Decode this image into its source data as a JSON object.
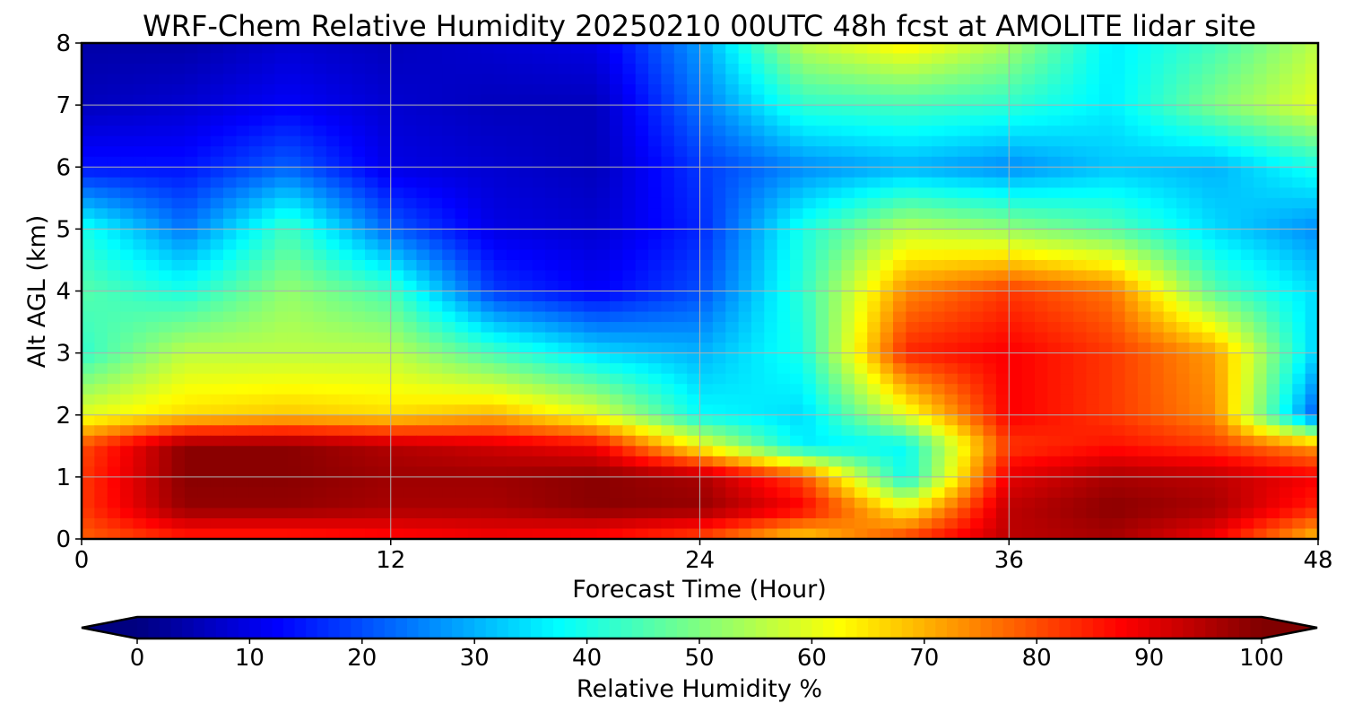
{
  "chart_data": {
    "type": "heatmap",
    "title": "WRF-Chem Relative Humidity 20250210 00UTC 48h fcst at AMOLITE lidar site",
    "xlabel": "Forecast Time (Hour)",
    "ylabel": "Alt AGL (km)",
    "xlim": [
      0,
      48
    ],
    "ylim": [
      0,
      8
    ],
    "x_ticks": [
      "0",
      "12",
      "24",
      "36",
      "48"
    ],
    "x_tick_values": [
      0,
      12,
      24,
      36,
      48
    ],
    "y_ticks": [
      "0",
      "1",
      "2",
      "3",
      "4",
      "5",
      "6",
      "7",
      "8"
    ],
    "y_tick_values": [
      0,
      1,
      2,
      3,
      4,
      5,
      6,
      7,
      8
    ],
    "grid": true,
    "colormap": "jet",
    "colorbar": {
      "label": "Relative Humidity %",
      "ticks": [
        "0",
        "10",
        "20",
        "30",
        "40",
        "50",
        "60",
        "70",
        "80",
        "90",
        "100"
      ],
      "tick_values": [
        0,
        10,
        20,
        30,
        40,
        50,
        60,
        70,
        80,
        90,
        100
      ],
      "range": [
        0,
        100
      ],
      "extend": "both",
      "orientation": "horizontal"
    },
    "x": [
      0,
      4,
      8,
      12,
      16,
      20,
      24,
      28,
      32,
      36,
      40,
      44,
      48
    ],
    "y": [
      0,
      0.5,
      1,
      1.5,
      2,
      3,
      4,
      5,
      6,
      7,
      8
    ],
    "z": [
      [
        78,
        84,
        84,
        86,
        88,
        86,
        80,
        66,
        82,
        94,
        96,
        88,
        68
      ],
      [
        82,
        98,
        98,
        96,
        96,
        99,
        98,
        88,
        62,
        94,
        99,
        96,
        84
      ],
      [
        82,
        99,
        99,
        97,
        97,
        99,
        96,
        80,
        38,
        90,
        96,
        94,
        88
      ],
      [
        80,
        99,
        99,
        95,
        92,
        88,
        62,
        36,
        38,
        82,
        86,
        82,
        72
      ],
      [
        60,
        66,
        68,
        66,
        70,
        60,
        38,
        34,
        60,
        88,
        82,
        74,
        20
      ],
      [
        42,
        56,
        56,
        56,
        44,
        34,
        30,
        40,
        84,
        88,
        82,
        72,
        32
      ],
      [
        46,
        40,
        52,
        44,
        18,
        12,
        20,
        42,
        74,
        82,
        76,
        46,
        34
      ],
      [
        40,
        24,
        44,
        22,
        10,
        8,
        16,
        40,
        56,
        52,
        46,
        34,
        26
      ],
      [
        14,
        14,
        22,
        10,
        8,
        6,
        18,
        26,
        30,
        26,
        32,
        30,
        40
      ],
      [
        6,
        8,
        12,
        8,
        6,
        6,
        24,
        42,
        44,
        42,
        36,
        50,
        60
      ],
      [
        4,
        4,
        8,
        6,
        8,
        10,
        28,
        56,
        64,
        54,
        36,
        44,
        56
      ]
    ]
  }
}
